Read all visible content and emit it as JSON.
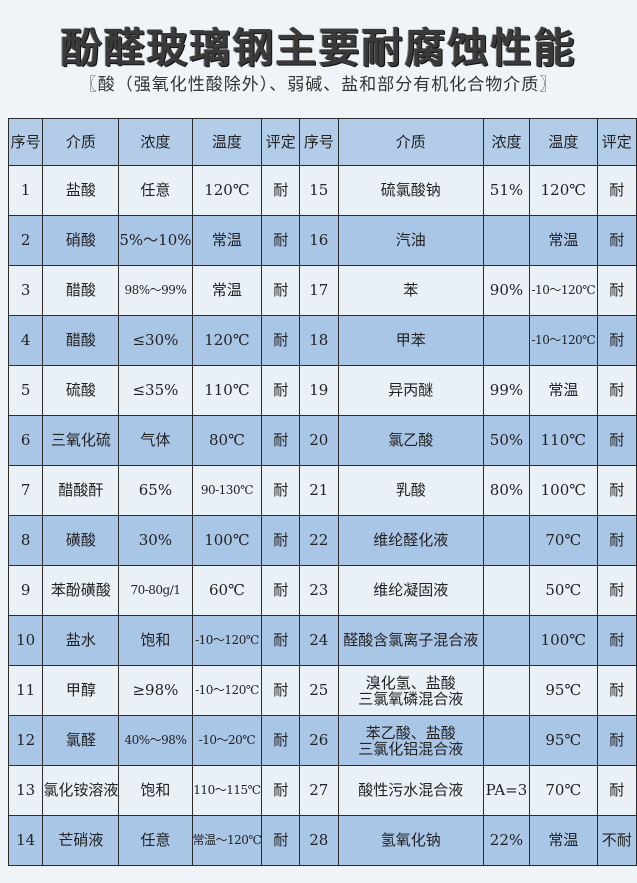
{
  "title": "酚醛玻璃钢主要耐腐蚀性能",
  "subtitle": "〖酸（强氧化性酸除外）、弱碱、盐和部分有机化合物介质〗",
  "headers": [
    "序号",
    "介质",
    "浓度",
    "温度",
    "评定",
    "序号",
    "介质",
    "浓度",
    "温度",
    "评定"
  ],
  "colors": {
    "row_light": "#e9f1f7",
    "row_blue": "#a9c6e6",
    "header": "#b3cde9"
  },
  "rows": [
    {
      "left": [
        "1",
        "盐酸",
        "任意",
        "120℃",
        "耐"
      ],
      "right": [
        "15",
        "硫氯酸钠",
        "51%",
        "120℃",
        "耐"
      ]
    },
    {
      "left": [
        "2",
        "硝酸",
        "5%～10%",
        "常温",
        "耐"
      ],
      "right": [
        "16",
        "汽油",
        "",
        "常温",
        "耐"
      ]
    },
    {
      "left": [
        "3",
        "醋酸",
        "98%～99%",
        "常温",
        "耐"
      ],
      "right": [
        "17",
        "苯",
        "90%",
        "-10～120℃",
        "耐"
      ]
    },
    {
      "left": [
        "4",
        "醋酸",
        "≤30%",
        "120℃",
        "耐"
      ],
      "right": [
        "18",
        "甲苯",
        "",
        "-10～120℃",
        "耐"
      ]
    },
    {
      "left": [
        "5",
        "硫酸",
        "≤35%",
        "110℃",
        "耐"
      ],
      "right": [
        "19",
        "异丙醚",
        "99%",
        "常温",
        "耐"
      ]
    },
    {
      "left": [
        "6",
        "三氧化硫",
        "气体",
        "80℃",
        "耐"
      ],
      "right": [
        "20",
        "氯乙酸",
        "50%",
        "110℃",
        "耐"
      ]
    },
    {
      "left": [
        "7",
        "醋酸酐",
        "65%",
        "90-130℃",
        "耐"
      ],
      "right": [
        "21",
        "乳酸",
        "80%",
        "100℃",
        "耐"
      ]
    },
    {
      "left": [
        "8",
        "磺酸",
        "30%",
        "100℃",
        "耐"
      ],
      "right": [
        "22",
        "维纶醛化液",
        "",
        "70℃",
        "耐"
      ]
    },
    {
      "left": [
        "9",
        "苯酚磺酸",
        "70-80g/1",
        "60℃",
        "耐"
      ],
      "right": [
        "23",
        "维纶凝固液",
        "",
        "50℃",
        "耐"
      ]
    },
    {
      "left": [
        "10",
        "盐水",
        "饱和",
        "-10～120℃",
        "耐"
      ],
      "right": [
        "24",
        "醛酸含氯离子混合液",
        "",
        "100℃",
        "耐"
      ]
    },
    {
      "left": [
        "11",
        "甲醇",
        "≥98%",
        "-10～120℃",
        "耐"
      ],
      "right": [
        "25",
        "溴化氢、盐酸\n三氯氧磷混合液",
        "",
        "95℃",
        "耐"
      ]
    },
    {
      "left": [
        "12",
        "氯醛",
        "40%～98%",
        "-10～20℃",
        "耐"
      ],
      "right": [
        "26",
        "苯乙酸、盐酸\n三氯化铝混合液",
        "",
        "95℃",
        "耐"
      ]
    },
    {
      "left": [
        "13",
        "氯化铵溶液",
        "饱和",
        "110～115℃",
        "耐"
      ],
      "right": [
        "27",
        "酸性污水混合液",
        "PA=3",
        "70℃",
        "耐"
      ]
    },
    {
      "left": [
        "14",
        "芒硝液",
        "任意",
        "常温～120℃",
        "耐"
      ],
      "right": [
        "28",
        "氢氧化钠",
        "22%",
        "常温",
        "不耐"
      ]
    }
  ]
}
